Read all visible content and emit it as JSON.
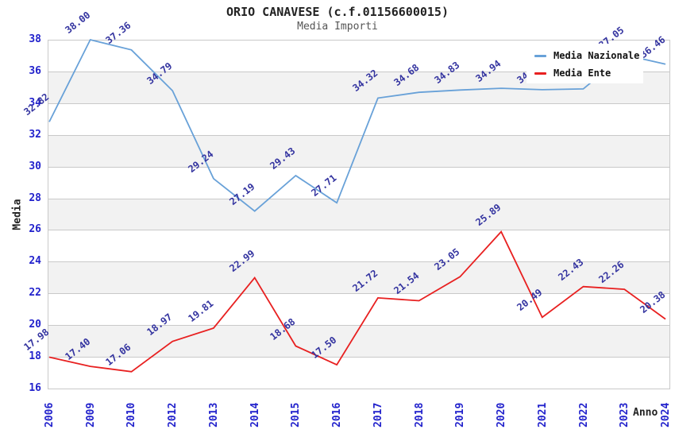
{
  "chart_data": {
    "type": "line",
    "title": "ORIO CANAVESE (c.f.01156600015)",
    "subtitle": "Media Importi",
    "xlabel": "Anno",
    "ylabel": "Media",
    "x_tick_labels": [
      "2006",
      "2009",
      "2010",
      "2012",
      "2013",
      "2014",
      "2015",
      "2016",
      "2017",
      "2018",
      "2019",
      "2020",
      "2021",
      "2022",
      "2023",
      "2024"
    ],
    "y_ticks": [
      16,
      18,
      20,
      22,
      24,
      26,
      28,
      30,
      32,
      34,
      36,
      38
    ],
    "ylim": [
      16,
      38
    ],
    "grid": "horizontal gridlines every 2 units with alternating white / light-gray bands",
    "legend_position": "top-right, white box overlapping plot",
    "series": [
      {
        "name": "Media Nazionale",
        "color": "#68a1d8",
        "values": [
          32.82,
          38.0,
          37.36,
          34.79,
          29.24,
          27.19,
          29.43,
          27.71,
          34.32,
          34.68,
          34.83,
          34.94,
          34.85,
          34.9,
          37.05,
          36.46
        ],
        "labels_hidden_by_legend_indices": [
          12,
          13
        ]
      },
      {
        "name": "Media Ente",
        "color": "#e82020",
        "values": [
          17.98,
          17.4,
          17.06,
          18.97,
          19.81,
          22.99,
          18.68,
          17.5,
          21.72,
          21.54,
          23.05,
          25.89,
          20.49,
          22.43,
          22.26,
          20.38
        ]
      }
    ],
    "colors": {
      "axis_tick_text": "#2222cc",
      "point_label_text": "#3434a0",
      "gridline": "#c9c9c9",
      "band_fill": "#f2f2f2",
      "title_text": "#222222",
      "subtitle_text": "#555555"
    }
  }
}
